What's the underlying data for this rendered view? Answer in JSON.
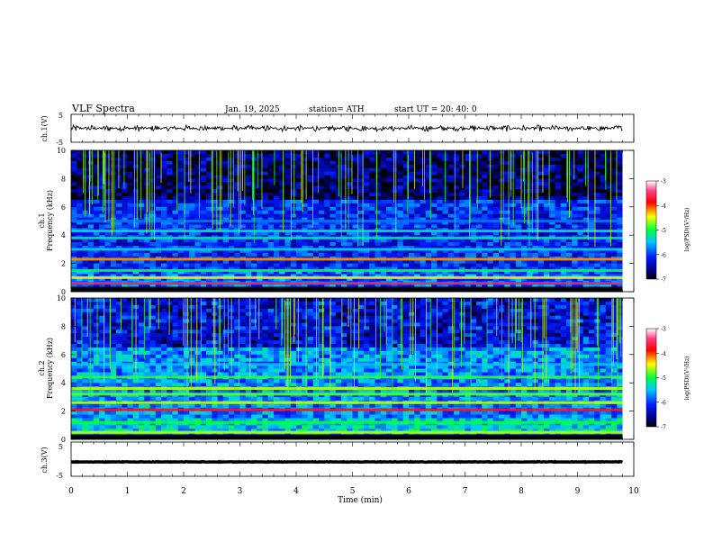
{
  "header": {
    "title": "VLF  Spectra",
    "date": "Jan. 19, 2025",
    "station": "station= ATH",
    "start": "start  UT  =   20: 40: 0"
  },
  "chart_data": [
    {
      "type": "line",
      "name": "ch.1 waveform",
      "ylabel": "ch.1(V)",
      "ylim": [
        -5,
        5
      ],
      "yticks": [
        "5",
        "-5"
      ],
      "xlim": [
        0,
        10
      ],
      "x_extent": [
        0,
        9.8
      ],
      "mean": 0,
      "amplitude": 1.2
    },
    {
      "type": "heatmap",
      "name": "ch.1 spectrogram",
      "ylabel_top": "ch.1",
      "ylabel": "Frequency (kHz)",
      "ylim": [
        0,
        10
      ],
      "yticks": [
        "0",
        "2",
        "4",
        "6",
        "8",
        "10"
      ],
      "xlim": [
        0,
        10
      ],
      "x_extent": [
        0,
        9.8
      ],
      "colorbar": {
        "label": "log(PSD)(V²/Hz)",
        "range": [
          -7,
          -3
        ],
        "ticks": [
          "-3",
          "-4",
          "-5",
          "-6",
          "-7"
        ]
      },
      "bands_khz": [
        {
          "f": 0.6,
          "level": -3.6
        },
        {
          "f": 1.0,
          "level": -4.4
        },
        {
          "f": 1.5,
          "level": -5.0
        },
        {
          "f": 2.3,
          "level": -4.2
        },
        {
          "f": 3.0,
          "level": -5.4
        },
        {
          "f": 3.8,
          "level": -5.2
        },
        {
          "f": 4.3,
          "level": -5.3
        },
        {
          "f": 5.0,
          "level": -5.8
        }
      ],
      "background_level": -6.1,
      "spike_level": -5.0
    },
    {
      "type": "heatmap",
      "name": "ch.2 spectrogram",
      "ylabel_top": "ch.2",
      "ylabel": "Frequency (kHz)",
      "ylim": [
        0,
        10
      ],
      "yticks": [
        "0",
        "2",
        "4",
        "6",
        "8",
        "10"
      ],
      "xlim": [
        0,
        10
      ],
      "x_extent": [
        0,
        9.8
      ],
      "colorbar": {
        "label": "log(PSD)(V²/Hz)",
        "range": [
          -7,
          -3
        ],
        "ticks": [
          "-3",
          "-4",
          "-5",
          "-6",
          "-7"
        ]
      },
      "bands_khz": [
        {
          "f": 0.5,
          "level": -4.6
        },
        {
          "f": 1.2,
          "level": -5.0
        },
        {
          "f": 2.1,
          "level": -3.8
        },
        {
          "f": 2.6,
          "level": -4.6
        },
        {
          "f": 3.2,
          "level": -4.8
        },
        {
          "f": 3.6,
          "level": -4.6
        },
        {
          "f": 4.4,
          "level": -4.9
        },
        {
          "f": 5.3,
          "level": -5.5
        }
      ],
      "background_level": -5.7,
      "spike_level": -5.0
    },
    {
      "type": "line",
      "name": "ch.3 waveform",
      "ylabel": "ch.3(V)",
      "ylim": [
        -5,
        5
      ],
      "yticks": [
        "5",
        "-5"
      ],
      "xlim": [
        0,
        10
      ],
      "x_extent": [
        0,
        9.8
      ],
      "mean": -0.8,
      "amplitude": 0.1
    }
  ],
  "xaxis": {
    "label": "Time  (min)",
    "ticks": [
      "0",
      "1",
      "2",
      "3",
      "4",
      "5",
      "6",
      "7",
      "8",
      "9",
      "10"
    ]
  }
}
